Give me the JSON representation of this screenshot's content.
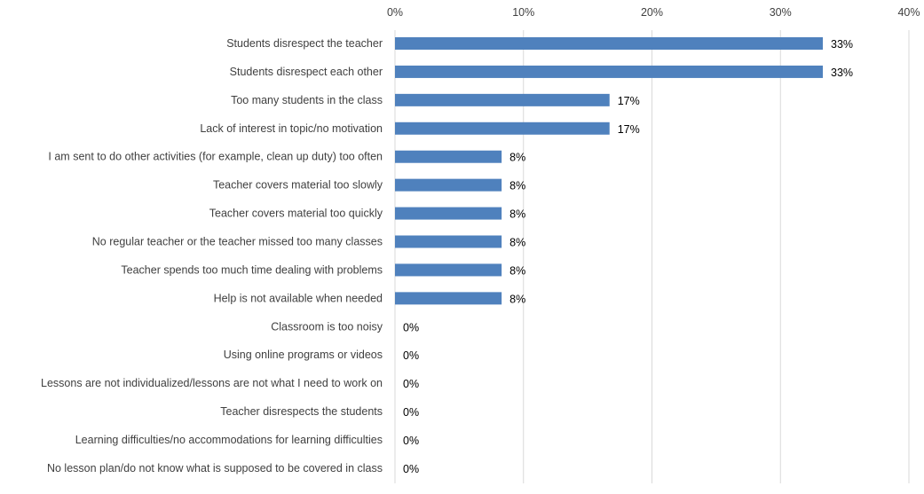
{
  "chart_data": {
    "type": "bar",
    "orientation": "horizontal",
    "title": "",
    "xlabel": "",
    "ylabel": "",
    "xlim": [
      0,
      0.4
    ],
    "x_ticks": [
      0,
      0.1,
      0.2,
      0.3,
      0.4
    ],
    "x_tick_labels": [
      "0%",
      "10%",
      "20%",
      "30%",
      "40%"
    ],
    "x_axis_position": "top",
    "grid": true,
    "legend": "none",
    "bar_color": "#4F81BD",
    "gridline_color": "#D9D9D9",
    "text_color": "#404040",
    "categories": [
      "Students disrespect the teacher",
      "Students disrespect each other",
      "Too many students in the class",
      "Lack of interest in topic/no motivation",
      "I am sent to do other activities (for example, clean up duty) too often",
      "Teacher covers material too slowly",
      "Teacher covers material too quickly",
      "No regular teacher or the teacher missed too many classes",
      "Teacher spends too much time dealing with problems",
      "Help is not available when needed",
      "Classroom is too noisy",
      "Using online programs or videos",
      "Lessons are not individualized/lessons are not what I need to work on",
      "Teacher disrespects the students",
      "Learning difficulties/no accommodations for learning difficulties",
      "No lesson plan/do not know what is supposed to be covered in class"
    ],
    "values": [
      0.333,
      0.333,
      0.167,
      0.167,
      0.083,
      0.083,
      0.083,
      0.083,
      0.083,
      0.083,
      0,
      0,
      0,
      0,
      0,
      0
    ],
    "data_labels": [
      "33%",
      "33%",
      "17%",
      "17%",
      "8%",
      "8%",
      "8%",
      "8%",
      "8%",
      "8%",
      "0%",
      "0%",
      "0%",
      "0%",
      "0%",
      "0%"
    ]
  }
}
